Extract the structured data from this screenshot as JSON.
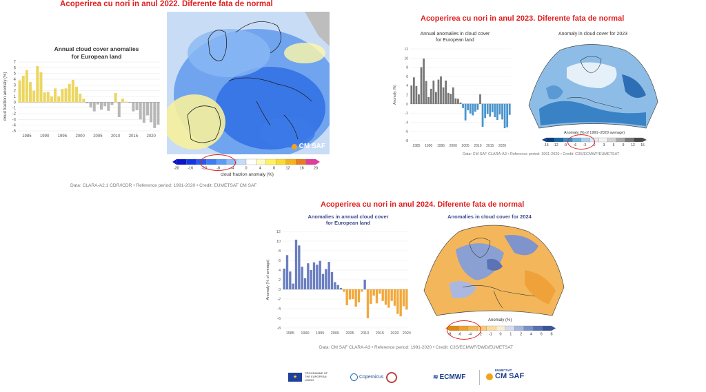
{
  "titles": {
    "t2022": "Acoperirea cu nori in anul 2022. Diferente fata de normal",
    "t2023": "Acoperirea cu nori in anul 2023. Diferente fata de normal",
    "t2024": "Acoperirea cu nori in anul 2024. Diferente fata de normal"
  },
  "panel2022": {
    "chart_title": "Annual cloud cover anomalies",
    "chart_subtitle": "for European land",
    "map_logo": "CM SAF",
    "colorbar_label": "cloud fraction anomaly (%)",
    "colorbar_ticks": [
      "-20",
      "-16",
      "-12",
      "-8",
      "-4",
      "0",
      "4",
      "8",
      "12",
      "16",
      "20"
    ],
    "colorbar_colors": [
      "#0a14c8",
      "#1434e6",
      "#2458f0",
      "#3a7cf5",
      "#5c9cf7",
      "#8cbcf8",
      "#c4dcfa",
      "#ffffff",
      "#fffbc0",
      "#fff060",
      "#f8dc30",
      "#f4b41c",
      "#ec7c20",
      "#e03c9c"
    ],
    "credit": "Data: CLARA-A2.1 CDR/ICDR • Reference period: 1991-2020 • Credit: EUMETSAT CM SAF"
  },
  "panel2023": {
    "chart_title": "Annual anomalies in cloud cover",
    "chart_subtitle": "for European land",
    "map_title": "Anomaly in cloud cover for 2023",
    "colorbar_label": "Anomaly (% of 1991–2020 average)",
    "colorbar_ticks": [
      "-15",
      "-12",
      "-9",
      "-6",
      "-3",
      "0",
      "3",
      "6",
      "9",
      "12",
      "15"
    ],
    "colorbar_colors": [
      "#083c7c",
      "#1664ac",
      "#3a8ac8",
      "#6eaedc",
      "#a8d0ec",
      "#dcecf8",
      "#f2f2f2",
      "#d2d2d2",
      "#a8a8a8",
      "#787878",
      "#484848"
    ],
    "credit": "Data: CM SAF CLARA-A3 • Reference period: 1991-2020 • Credit: C3S/ECMWF/EUMETSAT"
  },
  "panel2024": {
    "chart_title": "Anomalies in annual cloud cover",
    "chart_subtitle": "for European land",
    "map_title": "Anomalies in cloud cover for 2024",
    "colorbar_label": "Anomaly (%)",
    "colorbar_ticks": [
      "-8",
      "-6",
      "-4",
      "-2",
      "-1",
      "0",
      "1",
      "2",
      "4",
      "6",
      "8"
    ],
    "colorbar_colors": [
      "#e08a14",
      "#eea030",
      "#f4b650",
      "#f8ca78",
      "#fadca4",
      "#fcecd0",
      "#d6dcee",
      "#a8b6dc",
      "#7c90c8",
      "#5670b0",
      "#3a5498"
    ],
    "credit": "Data: CM SAF CLARA-A3 • Reference period: 1991-2020 • Credit: C3S/ECMWF/DWD/EUMETSAT"
  },
  "footer": {
    "eu_label": "PROGRAMME OF THE EUROPEAN UNION",
    "copernicus": "Copernicus",
    "ecmwf": "ECMWF",
    "eumetsat": "EUMETSAT",
    "cmsaf": "CM SAF"
  },
  "chart_data": [
    {
      "type": "bar",
      "title": "Annual cloud cover anomalies",
      "subtitle": "for European land",
      "xlabel": "",
      "ylabel": "cloud fraction anomaly (%)",
      "ylim": [
        -5,
        7
      ],
      "yticks": [
        -5,
        -4,
        -3,
        -2,
        -1,
        0,
        1,
        2,
        3,
        4,
        5,
        6,
        7
      ],
      "xticks": [
        1985,
        1990,
        1995,
        2000,
        2005,
        2010,
        2015,
        2020
      ],
      "x": [
        1983,
        1984,
        1985,
        1986,
        1987,
        1988,
        1989,
        1990,
        1991,
        1992,
        1993,
        1994,
        1995,
        1996,
        1997,
        1998,
        1999,
        2000,
        2001,
        2002,
        2003,
        2004,
        2005,
        2006,
        2007,
        2008,
        2009,
        2010,
        2011,
        2012,
        2013,
        2014,
        2015,
        2016,
        2017,
        2018,
        2019,
        2020,
        2021,
        2022
      ],
      "values": [
        3.8,
        4.6,
        5.6,
        3.5,
        2.0,
        6.3,
        5.2,
        1.7,
        1.8,
        1.0,
        2.4,
        1.0,
        2.3,
        2.4,
        3.2,
        3.9,
        2.7,
        1.5,
        0.6,
        -0.2,
        -0.9,
        -1.6,
        -0.4,
        -1.3,
        -0.7,
        -1.5,
        -0.5,
        1.6,
        -2.6,
        0.6,
        0.1,
        -0.1,
        -1.6,
        -1.4,
        -3.0,
        -3.6,
        -2.3,
        -3.5,
        -4.5,
        -3.9
      ],
      "colors": {
        "positive": "#ecd660",
        "negative": "#b8b8b8"
      }
    },
    {
      "type": "bar",
      "title": "Annual anomalies in cloud cover",
      "subtitle": "for European land",
      "xlabel": "",
      "ylabel": "Anomaly (%)",
      "ylim": [
        -8,
        12
      ],
      "yticks": [
        -8,
        -6,
        -4,
        -2,
        0,
        2,
        4,
        6,
        8,
        10,
        12
      ],
      "xticks": [
        1985,
        1990,
        1995,
        2000,
        2005,
        2010,
        2015,
        2020
      ],
      "x": [
        1983,
        1984,
        1985,
        1986,
        1987,
        1988,
        1989,
        1990,
        1991,
        1992,
        1993,
        1994,
        1995,
        1996,
        1997,
        1998,
        1999,
        2000,
        2001,
        2002,
        2003,
        2004,
        2005,
        2006,
        2007,
        2008,
        2009,
        2010,
        2011,
        2012,
        2013,
        2014,
        2015,
        2016,
        2017,
        2018,
        2019,
        2020,
        2021,
        2022,
        2023
      ],
      "values": [
        4.0,
        5.8,
        3.9,
        2.1,
        8.0,
        9.9,
        5.0,
        1.5,
        3.3,
        5.1,
        2.6,
        5.3,
        6.0,
        3.6,
        5.1,
        2.4,
        2.2,
        3.6,
        1.2,
        1.1,
        0.3,
        -0.9,
        -3.6,
        -1.4,
        -2.1,
        -2.5,
        -1.7,
        -1.3,
        2.1,
        -5.0,
        -3.1,
        -2.2,
        -2.8,
        -1.8,
        -2.9,
        -3.5,
        -2.3,
        -3.4,
        -5.3,
        -5.1,
        -2.4
      ],
      "colors": {
        "positive": "#777777",
        "negative": "#4a94cc"
      }
    },
    {
      "type": "bar",
      "title": "Anomalies in annual cloud cover",
      "subtitle": "for European land",
      "xlabel": "",
      "ylabel": "Anomaly (% of average)",
      "ylim": [
        -8,
        12
      ],
      "yticks": [
        -8,
        -6,
        -4,
        -2,
        0,
        2,
        4,
        6,
        8,
        10,
        12
      ],
      "xticks": [
        1985,
        1990,
        1995,
        2000,
        2005,
        2010,
        2015,
        2020,
        2024
      ],
      "x": [
        1983,
        1984,
        1985,
        1986,
        1987,
        1988,
        1989,
        1990,
        1991,
        1992,
        1993,
        1994,
        1995,
        1996,
        1997,
        1998,
        1999,
        2000,
        2001,
        2002,
        2003,
        2004,
        2005,
        2006,
        2007,
        2008,
        2009,
        2010,
        2011,
        2012,
        2013,
        2014,
        2015,
        2016,
        2017,
        2018,
        2019,
        2020,
        2021,
        2022,
        2023,
        2024
      ],
      "values": [
        4.3,
        7.1,
        3.7,
        1.2,
        10.3,
        9.1,
        4.7,
        2.3,
        5.4,
        4.0,
        5.6,
        5.1,
        5.9,
        3.2,
        4.2,
        5.7,
        3.6,
        1.5,
        0.9,
        0.3,
        -0.5,
        -3.3,
        -2.1,
        -2.0,
        -3.6,
        -2.7,
        -0.5,
        2.0,
        -6.0,
        -3.0,
        -1.3,
        -2.9,
        -0.9,
        -2.4,
        -3.2,
        -3.8,
        -2.4,
        -3.4,
        -5.1,
        -5.6,
        -3.5,
        -4.2
      ],
      "colors": {
        "positive": "#6a7ec0",
        "negative": "#f2a83a"
      }
    }
  ]
}
